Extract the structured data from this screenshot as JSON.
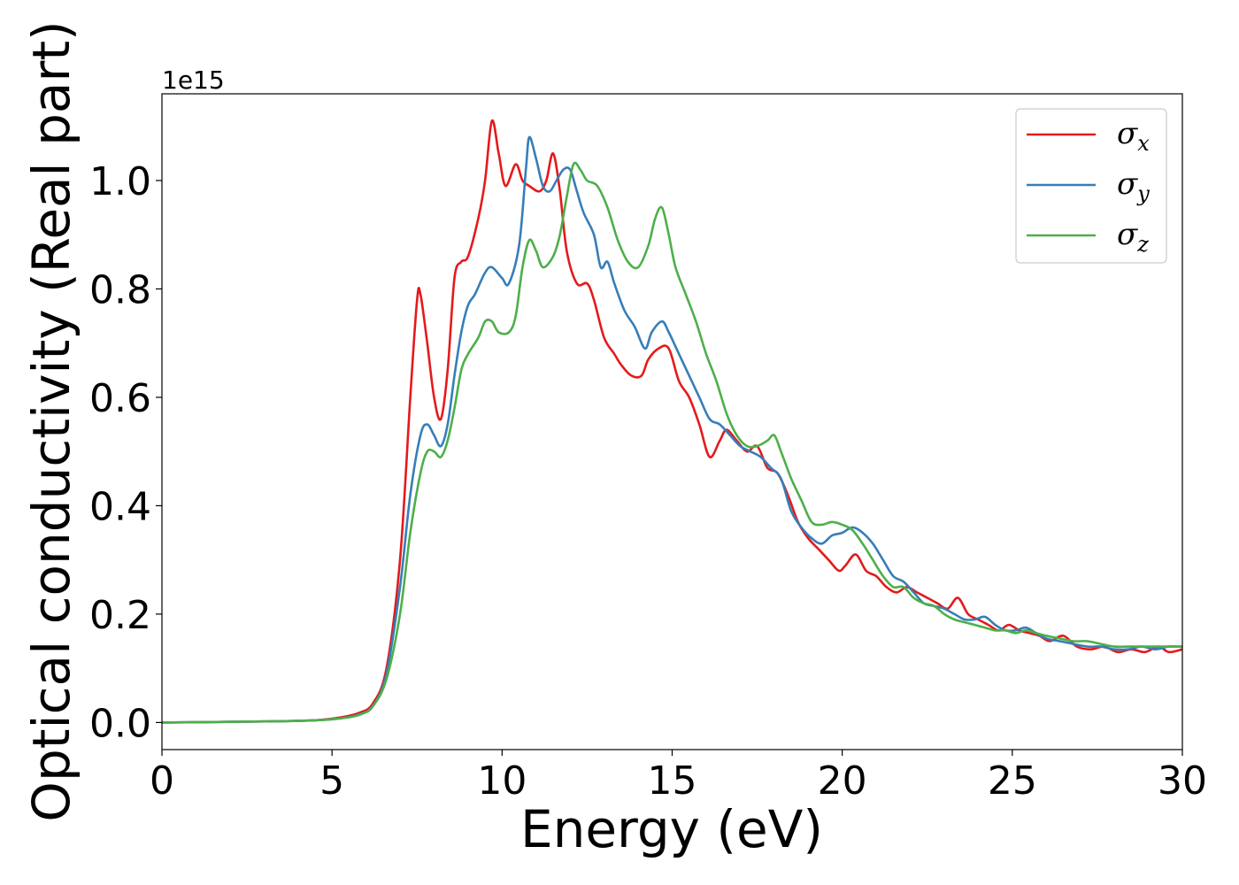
{
  "chart_data": {
    "type": "line",
    "xlabel": "Energy (eV)",
    "ylabel": "Optical conductivity (Real part)",
    "y_offset_label": "1e15",
    "xlim": [
      0,
      30
    ],
    "ylim": [
      -0.05,
      1.16
    ],
    "x_ticks": [
      0,
      5,
      10,
      15,
      20,
      25,
      30
    ],
    "x_tick_labels": [
      "0",
      "5",
      "10",
      "15",
      "20",
      "25",
      "30"
    ],
    "y_ticks": [
      0.0,
      0.2,
      0.4,
      0.6,
      0.8,
      1.0
    ],
    "y_tick_labels": [
      "0.0",
      "0.2",
      "0.4",
      "0.6",
      "0.8",
      "1.0"
    ],
    "grid": false,
    "legend_position": "top-right",
    "series": [
      {
        "name": "σx",
        "symbol": "σ",
        "sub": "x",
        "color": "#e41a1c",
        "points": [
          [
            0,
            0
          ],
          [
            3,
            0.002
          ],
          [
            4.5,
            0.004
          ],
          [
            5.3,
            0.01
          ],
          [
            5.8,
            0.018
          ],
          [
            6.2,
            0.035
          ],
          [
            6.6,
            0.1
          ],
          [
            7.0,
            0.3
          ],
          [
            7.3,
            0.6
          ],
          [
            7.5,
            0.78
          ],
          [
            7.6,
            0.79
          ],
          [
            7.8,
            0.7
          ],
          [
            8.0,
            0.6
          ],
          [
            8.2,
            0.56
          ],
          [
            8.4,
            0.65
          ],
          [
            8.6,
            0.82
          ],
          [
            8.8,
            0.85
          ],
          [
            9.0,
            0.86
          ],
          [
            9.3,
            0.93
          ],
          [
            9.5,
            1.0
          ],
          [
            9.7,
            1.11
          ],
          [
            9.9,
            1.05
          ],
          [
            10.1,
            0.99
          ],
          [
            10.4,
            1.03
          ],
          [
            10.6,
            1.0
          ],
          [
            10.8,
            0.99
          ],
          [
            11.1,
            0.98
          ],
          [
            11.3,
            1.0
          ],
          [
            11.5,
            1.05
          ],
          [
            11.7,
            0.98
          ],
          [
            11.9,
            0.87
          ],
          [
            12.2,
            0.81
          ],
          [
            12.5,
            0.81
          ],
          [
            12.7,
            0.78
          ],
          [
            13.0,
            0.71
          ],
          [
            13.3,
            0.68
          ],
          [
            13.5,
            0.66
          ],
          [
            13.8,
            0.64
          ],
          [
            14.1,
            0.64
          ],
          [
            14.3,
            0.67
          ],
          [
            14.6,
            0.69
          ],
          [
            14.9,
            0.69
          ],
          [
            15.2,
            0.63
          ],
          [
            15.5,
            0.6
          ],
          [
            15.8,
            0.55
          ],
          [
            16.1,
            0.49
          ],
          [
            16.4,
            0.52
          ],
          [
            16.6,
            0.54
          ],
          [
            16.9,
            0.52
          ],
          [
            17.2,
            0.5
          ],
          [
            17.5,
            0.51
          ],
          [
            17.8,
            0.47
          ],
          [
            18.1,
            0.46
          ],
          [
            18.4,
            0.42
          ],
          [
            18.7,
            0.37
          ],
          [
            19.0,
            0.34
          ],
          [
            19.3,
            0.32
          ],
          [
            19.6,
            0.3
          ],
          [
            19.9,
            0.28
          ],
          [
            20.1,
            0.29
          ],
          [
            20.4,
            0.31
          ],
          [
            20.7,
            0.28
          ],
          [
            21.0,
            0.27
          ],
          [
            21.3,
            0.25
          ],
          [
            21.6,
            0.24
          ],
          [
            21.9,
            0.25
          ],
          [
            22.2,
            0.24
          ],
          [
            22.5,
            0.23
          ],
          [
            22.8,
            0.22
          ],
          [
            23.1,
            0.21
          ],
          [
            23.4,
            0.23
          ],
          [
            23.7,
            0.2
          ],
          [
            24.0,
            0.19
          ],
          [
            24.3,
            0.18
          ],
          [
            24.6,
            0.17
          ],
          [
            24.9,
            0.18
          ],
          [
            25.2,
            0.17
          ],
          [
            25.5,
            0.165
          ],
          [
            25.8,
            0.16
          ],
          [
            26.1,
            0.15
          ],
          [
            26.5,
            0.16
          ],
          [
            26.9,
            0.14
          ],
          [
            27.3,
            0.135
          ],
          [
            27.7,
            0.14
          ],
          [
            28.1,
            0.13
          ],
          [
            28.5,
            0.135
          ],
          [
            28.9,
            0.13
          ],
          [
            29.3,
            0.14
          ],
          [
            29.6,
            0.13
          ],
          [
            30.0,
            0.135
          ]
        ]
      },
      {
        "name": "σy",
        "symbol": "σ",
        "sub": "y",
        "color": "#377eb8",
        "points": [
          [
            0,
            0
          ],
          [
            3,
            0.002
          ],
          [
            4.5,
            0.004
          ],
          [
            5.3,
            0.008
          ],
          [
            5.8,
            0.015
          ],
          [
            6.2,
            0.03
          ],
          [
            6.6,
            0.09
          ],
          [
            7.0,
            0.25
          ],
          [
            7.3,
            0.42
          ],
          [
            7.6,
            0.53
          ],
          [
            7.8,
            0.55
          ],
          [
            8.0,
            0.53
          ],
          [
            8.2,
            0.51
          ],
          [
            8.4,
            0.55
          ],
          [
            8.6,
            0.64
          ],
          [
            8.8,
            0.72
          ],
          [
            9.0,
            0.77
          ],
          [
            9.2,
            0.79
          ],
          [
            9.5,
            0.83
          ],
          [
            9.7,
            0.84
          ],
          [
            10.0,
            0.82
          ],
          [
            10.2,
            0.81
          ],
          [
            10.5,
            0.88
          ],
          [
            10.7,
            1.02
          ],
          [
            10.8,
            1.08
          ],
          [
            11.0,
            1.04
          ],
          [
            11.2,
            0.99
          ],
          [
            11.4,
            0.98
          ],
          [
            11.6,
            1.0
          ],
          [
            11.8,
            1.02
          ],
          [
            12.0,
            1.02
          ],
          [
            12.2,
            0.98
          ],
          [
            12.4,
            0.94
          ],
          [
            12.7,
            0.9
          ],
          [
            12.9,
            0.84
          ],
          [
            13.1,
            0.85
          ],
          [
            13.3,
            0.81
          ],
          [
            13.6,
            0.76
          ],
          [
            13.9,
            0.73
          ],
          [
            14.2,
            0.69
          ],
          [
            14.4,
            0.72
          ],
          [
            14.7,
            0.74
          ],
          [
            14.9,
            0.72
          ],
          [
            15.2,
            0.68
          ],
          [
            15.5,
            0.64
          ],
          [
            15.8,
            0.6
          ],
          [
            16.1,
            0.56
          ],
          [
            16.4,
            0.55
          ],
          [
            16.7,
            0.53
          ],
          [
            17.0,
            0.51
          ],
          [
            17.3,
            0.5
          ],
          [
            17.6,
            0.49
          ],
          [
            17.9,
            0.47
          ],
          [
            18.2,
            0.45
          ],
          [
            18.5,
            0.39
          ],
          [
            18.8,
            0.36
          ],
          [
            19.1,
            0.34
          ],
          [
            19.4,
            0.33
          ],
          [
            19.7,
            0.345
          ],
          [
            20.0,
            0.35
          ],
          [
            20.3,
            0.36
          ],
          [
            20.6,
            0.35
          ],
          [
            20.9,
            0.33
          ],
          [
            21.2,
            0.3
          ],
          [
            21.5,
            0.27
          ],
          [
            21.8,
            0.26
          ],
          [
            22.1,
            0.24
          ],
          [
            22.4,
            0.22
          ],
          [
            22.7,
            0.215
          ],
          [
            23.0,
            0.21
          ],
          [
            23.3,
            0.2
          ],
          [
            23.6,
            0.19
          ],
          [
            23.9,
            0.19
          ],
          [
            24.2,
            0.195
          ],
          [
            24.5,
            0.18
          ],
          [
            24.8,
            0.17
          ],
          [
            25.1,
            0.17
          ],
          [
            25.4,
            0.175
          ],
          [
            25.7,
            0.165
          ],
          [
            26.0,
            0.155
          ],
          [
            26.4,
            0.15
          ],
          [
            26.8,
            0.145
          ],
          [
            27.2,
            0.14
          ],
          [
            27.6,
            0.14
          ],
          [
            28.0,
            0.135
          ],
          [
            28.4,
            0.135
          ],
          [
            28.8,
            0.14
          ],
          [
            29.2,
            0.135
          ],
          [
            29.6,
            0.14
          ],
          [
            30.0,
            0.14
          ]
        ]
      },
      {
        "name": "σz",
        "symbol": "σ",
        "sub": "z",
        "color": "#4daf4a",
        "points": [
          [
            0,
            0
          ],
          [
            3,
            0.002
          ],
          [
            4.5,
            0.004
          ],
          [
            5.3,
            0.008
          ],
          [
            5.8,
            0.014
          ],
          [
            6.2,
            0.03
          ],
          [
            6.6,
            0.08
          ],
          [
            7.0,
            0.2
          ],
          [
            7.3,
            0.35
          ],
          [
            7.6,
            0.46
          ],
          [
            7.8,
            0.5
          ],
          [
            8.0,
            0.5
          ],
          [
            8.2,
            0.49
          ],
          [
            8.4,
            0.52
          ],
          [
            8.6,
            0.58
          ],
          [
            8.8,
            0.65
          ],
          [
            9.0,
            0.68
          ],
          [
            9.3,
            0.71
          ],
          [
            9.5,
            0.74
          ],
          [
            9.7,
            0.74
          ],
          [
            9.9,
            0.72
          ],
          [
            10.2,
            0.72
          ],
          [
            10.4,
            0.75
          ],
          [
            10.6,
            0.84
          ],
          [
            10.8,
            0.89
          ],
          [
            11.0,
            0.87
          ],
          [
            11.2,
            0.84
          ],
          [
            11.5,
            0.86
          ],
          [
            11.7,
            0.9
          ],
          [
            11.9,
            0.97
          ],
          [
            12.1,
            1.03
          ],
          [
            12.3,
            1.02
          ],
          [
            12.5,
            1.0
          ],
          [
            12.8,
            0.99
          ],
          [
            13.1,
            0.95
          ],
          [
            13.4,
            0.89
          ],
          [
            13.7,
            0.85
          ],
          [
            14.0,
            0.84
          ],
          [
            14.3,
            0.88
          ],
          [
            14.5,
            0.93
          ],
          [
            14.7,
            0.95
          ],
          [
            14.9,
            0.9
          ],
          [
            15.1,
            0.84
          ],
          [
            15.4,
            0.79
          ],
          [
            15.7,
            0.74
          ],
          [
            16.0,
            0.68
          ],
          [
            16.3,
            0.63
          ],
          [
            16.6,
            0.57
          ],
          [
            16.9,
            0.53
          ],
          [
            17.2,
            0.51
          ],
          [
            17.5,
            0.51
          ],
          [
            17.8,
            0.52
          ],
          [
            18.0,
            0.53
          ],
          [
            18.2,
            0.5
          ],
          [
            18.5,
            0.45
          ],
          [
            18.8,
            0.41
          ],
          [
            19.1,
            0.37
          ],
          [
            19.4,
            0.365
          ],
          [
            19.7,
            0.37
          ],
          [
            20.0,
            0.365
          ],
          [
            20.3,
            0.355
          ],
          [
            20.6,
            0.33
          ],
          [
            20.9,
            0.3
          ],
          [
            21.2,
            0.27
          ],
          [
            21.5,
            0.25
          ],
          [
            21.8,
            0.25
          ],
          [
            22.1,
            0.23
          ],
          [
            22.4,
            0.22
          ],
          [
            22.7,
            0.215
          ],
          [
            23.0,
            0.2
          ],
          [
            23.3,
            0.19
          ],
          [
            23.6,
            0.185
          ],
          [
            23.9,
            0.18
          ],
          [
            24.2,
            0.175
          ],
          [
            24.5,
            0.17
          ],
          [
            24.8,
            0.17
          ],
          [
            25.1,
            0.165
          ],
          [
            25.4,
            0.17
          ],
          [
            25.7,
            0.165
          ],
          [
            26.0,
            0.16
          ],
          [
            26.4,
            0.155
          ],
          [
            26.8,
            0.15
          ],
          [
            27.2,
            0.15
          ],
          [
            27.6,
            0.145
          ],
          [
            28.0,
            0.14
          ],
          [
            28.4,
            0.14
          ],
          [
            28.8,
            0.14
          ],
          [
            29.2,
            0.14
          ],
          [
            29.6,
            0.14
          ],
          [
            30.0,
            0.14
          ]
        ]
      }
    ]
  }
}
